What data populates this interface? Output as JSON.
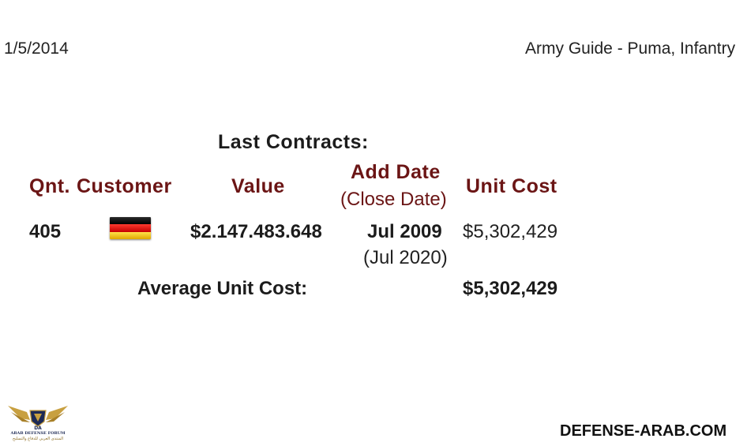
{
  "header": {
    "date": "1/5/2014",
    "title": "Army Guide - Puma, Infantry"
  },
  "contracts": {
    "title": "Last Contracts:",
    "columns": {
      "qnt": "Qnt.",
      "customer": "Customer",
      "value": "Value",
      "add_date": "Add Date",
      "close_date_label": "(Close Date)",
      "unit_cost": "Unit Cost"
    },
    "rows": [
      {
        "qnt": "405",
        "customer_flag": "germany-flag",
        "value": "$2.147.483.648",
        "add_date": "Jul 2009",
        "close_date": "(Jul 2020)",
        "unit_cost": "$5,302,429"
      }
    ],
    "average": {
      "label": "Average Unit Cost:",
      "value": "$5,302,429"
    }
  },
  "footer": {
    "logo_top": "DA",
    "logo_name": "ARAB DEFENSE FORUM",
    "logo_arabic": "المنتدى العربي للدفاع والتسليح",
    "site": "DEFENSE-ARAB.COM"
  },
  "colors": {
    "header_accent": "#6b1515",
    "logo_gold": "#c8a040",
    "logo_navy": "#1d2a55"
  }
}
